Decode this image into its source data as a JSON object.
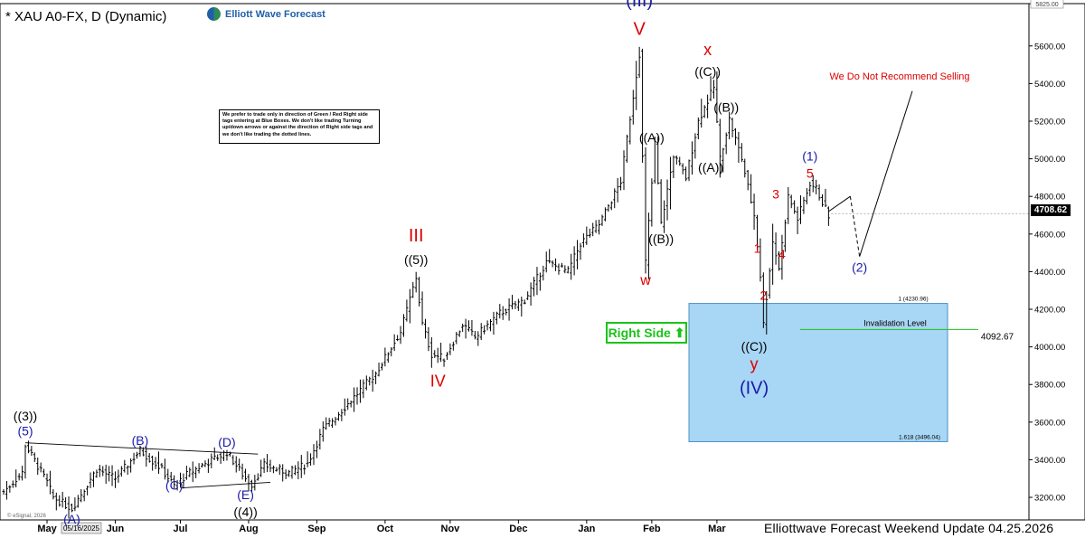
{
  "header": {
    "title": "* XAU A0-FX, D (Dynamic)"
  },
  "logo": {
    "text": "Elliott Wave Forecast",
    "icon": "ewf-logo-icon"
  },
  "note": {
    "text": "We prefer to trade only in direction of Green / Red Right side tags entering at Blue Boxes. We don't like trading Turning up/down arrows or against the direction of Right side tags and we don't like trading the dotted lines."
  },
  "right_side": {
    "label": "Right Side",
    "icon": "up-arrow-icon",
    "color": "#19c419"
  },
  "annotation": {
    "text": "We Do Not Recommend Selling",
    "color": "#dd0000"
  },
  "invalidation": {
    "label": "Invalidation Level",
    "value": "4092.67",
    "price": 4092.67,
    "color": "#19c419"
  },
  "blue_box": {
    "top_label": "1 (4230.96)",
    "bottom_label": "1.618 (3496.04)",
    "top": 4230.96,
    "bottom": 3496.04,
    "color": "#a8d6f5"
  },
  "last_price": {
    "value": "4708.62",
    "price": 4708.62
  },
  "footer": {
    "text": "Elliottwave Forecast Weekend  Update 04.25.2026",
    "source": "© eSignal, 2026",
    "date_box": "05/16/2025"
  },
  "chart_data": {
    "type": "bar",
    "subtype": "ohlc",
    "ylim": [
      3080,
      5825
    ],
    "y_ticks": [
      {
        "value": 3200,
        "label": "3200.00"
      },
      {
        "value": 3400,
        "label": "3400.00"
      },
      {
        "value": 3600,
        "label": "3600.00"
      },
      {
        "value": 3800,
        "label": "3800.00"
      },
      {
        "value": 4000,
        "label": "4000.00"
      },
      {
        "value": 4200,
        "label": "4200.00"
      },
      {
        "value": 4400,
        "label": "4400.00"
      },
      {
        "value": 4600,
        "label": "4600.00"
      },
      {
        "value": 4800,
        "label": "4800.00"
      },
      {
        "value": 5000,
        "label": "5000.00"
      },
      {
        "value": 5200,
        "label": "5200.00"
      },
      {
        "value": 5400,
        "label": "5400.00"
      },
      {
        "value": 5600,
        "label": "5600.00"
      },
      {
        "value": 5825,
        "label": "5825.00"
      }
    ],
    "x_ticks": [
      "May",
      "Jun",
      "Jul",
      "Aug",
      "Sep",
      "Oct",
      "Nov",
      "Dec",
      "Jan",
      "Feb",
      "Mar"
    ],
    "x_tick_index": [
      14,
      36,
      57,
      79,
      101,
      123,
      144,
      166,
      188,
      209,
      230
    ],
    "path": [
      [
        0,
        3230
      ],
      [
        6,
        3330
      ],
      [
        7,
        3480
      ],
      [
        14,
        3280
      ],
      [
        16,
        3200
      ],
      [
        22,
        3140
      ],
      [
        30,
        3350
      ],
      [
        36,
        3300
      ],
      [
        44,
        3450
      ],
      [
        51,
        3350
      ],
      [
        55,
        3260
      ],
      [
        59,
        3320
      ],
      [
        65,
        3380
      ],
      [
        72,
        3440
      ],
      [
        78,
        3300
      ],
      [
        80,
        3270
      ],
      [
        84,
        3370
      ],
      [
        92,
        3330
      ],
      [
        98,
        3380
      ],
      [
        103,
        3560
      ],
      [
        110,
        3680
      ],
      [
        120,
        3860
      ],
      [
        128,
        4080
      ],
      [
        133,
        4370
      ],
      [
        135,
        4120
      ],
      [
        138,
        3960
      ],
      [
        142,
        3940
      ],
      [
        148,
        4120
      ],
      [
        152,
        4050
      ],
      [
        160,
        4180
      ],
      [
        168,
        4250
      ],
      [
        175,
        4450
      ],
      [
        182,
        4400
      ],
      [
        186,
        4550
      ],
      [
        192,
        4650
      ],
      [
        199,
        4880
      ],
      [
        205,
        5560
      ],
      [
        207,
        4450
      ],
      [
        210,
        5080
      ],
      [
        212,
        4650
      ],
      [
        216,
        5020
      ],
      [
        220,
        4900
      ],
      [
        224,
        5200
      ],
      [
        229,
        5380
      ],
      [
        231,
        5000
      ],
      [
        234,
        5210
      ],
      [
        238,
        5000
      ],
      [
        242,
        4700
      ],
      [
        244,
        4380
      ],
      [
        245,
        4120
      ],
      [
        248,
        4560
      ],
      [
        250,
        4420
      ],
      [
        253,
        4800
      ],
      [
        256,
        4680
      ],
      [
        260,
        4870
      ],
      [
        262,
        4840
      ],
      [
        266,
        4700
      ]
    ],
    "projection": [
      [
        266,
        4720
      ],
      [
        273,
        4800
      ],
      [
        276,
        4480
      ],
      [
        293,
        5360
      ]
    ],
    "labels": [
      {
        "text": "((3))",
        "i": 7,
        "y": 3610,
        "color": "#000000",
        "size": 14
      },
      {
        "text": "(5)",
        "i": 7,
        "y": 3530,
        "color": "#1a1aaa",
        "size": 14
      },
      {
        "text": "(A)",
        "i": 22,
        "y": 3060,
        "color": "#1a1aaa",
        "size": 14
      },
      {
        "text": "(B)",
        "i": 44,
        "y": 3480,
        "color": "#1a1aaa",
        "size": 14
      },
      {
        "text": "(C)",
        "i": 55,
        "y": 3240,
        "color": "#1a1aaa",
        "size": 14
      },
      {
        "text": "(D)",
        "i": 72,
        "y": 3470,
        "color": "#1a1aaa",
        "size": 14
      },
      {
        "text": "(E)",
        "i": 78,
        "y": 3190,
        "color": "#1a1aaa",
        "size": 14
      },
      {
        "text": "((4))",
        "i": 78,
        "y": 3100,
        "color": "#000000",
        "size": 14
      },
      {
        "text": "III",
        "i": 133,
        "y": 4560,
        "color": "#dd0000",
        "size": 20
      },
      {
        "text": "((5))",
        "i": 133,
        "y": 4440,
        "color": "#000000",
        "size": 14
      },
      {
        "text": "IV",
        "i": 140,
        "y": 3790,
        "color": "#dd0000",
        "size": 18
      },
      {
        "text": "(III)",
        "i": 205,
        "y": 5810,
        "color": "#1a1aaa",
        "size": 20
      },
      {
        "text": "V",
        "i": 205,
        "y": 5660,
        "color": "#dd0000",
        "size": 20
      },
      {
        "text": "((A))",
        "i": 209,
        "y": 5090,
        "color": "#000000",
        "size": 14
      },
      {
        "text": "((B))",
        "i": 212,
        "y": 4550,
        "color": "#000000",
        "size": 14
      },
      {
        "text": "w",
        "i": 207,
        "y": 4330,
        "color": "#dd0000",
        "size": 16
      },
      {
        "text": "x",
        "i": 227,
        "y": 5550,
        "color": "#dd0000",
        "size": 18
      },
      {
        "text": "((C))",
        "i": 227,
        "y": 5440,
        "color": "#000000",
        "size": 14
      },
      {
        "text": "((A))",
        "i": 228,
        "y": 4930,
        "color": "#000000",
        "size": 14
      },
      {
        "text": "((B))",
        "i": 233,
        "y": 5250,
        "color": "#000000",
        "size": 14
      },
      {
        "text": "((C))",
        "i": 242,
        "y": 3980,
        "color": "#000000",
        "size": 14
      },
      {
        "text": "y",
        "i": 242,
        "y": 3880,
        "color": "#dd0000",
        "size": 18
      },
      {
        "text": "(IV)",
        "i": 242,
        "y": 3750,
        "color": "#1a1aaa",
        "size": 20
      },
      {
        "text": "1",
        "i": 243,
        "y": 4500,
        "color": "#dd0000",
        "size": 14
      },
      {
        "text": "2",
        "i": 245,
        "y": 4250,
        "color": "#dd0000",
        "size": 14
      },
      {
        "text": "3",
        "i": 249,
        "y": 4790,
        "color": "#dd0000",
        "size": 14
      },
      {
        "text": "4",
        "i": 251,
        "y": 4470,
        "color": "#dd0000",
        "size": 14
      },
      {
        "text": "(1)",
        "i": 260,
        "y": 4990,
        "color": "#1a1aaa",
        "size": 14
      },
      {
        "text": "5",
        "i": 260,
        "y": 4900,
        "color": "#dd0000",
        "size": 14
      },
      {
        "text": "(2)",
        "i": 276,
        "y": 4400,
        "color": "#1a1aaa",
        "size": 14
      }
    ]
  }
}
